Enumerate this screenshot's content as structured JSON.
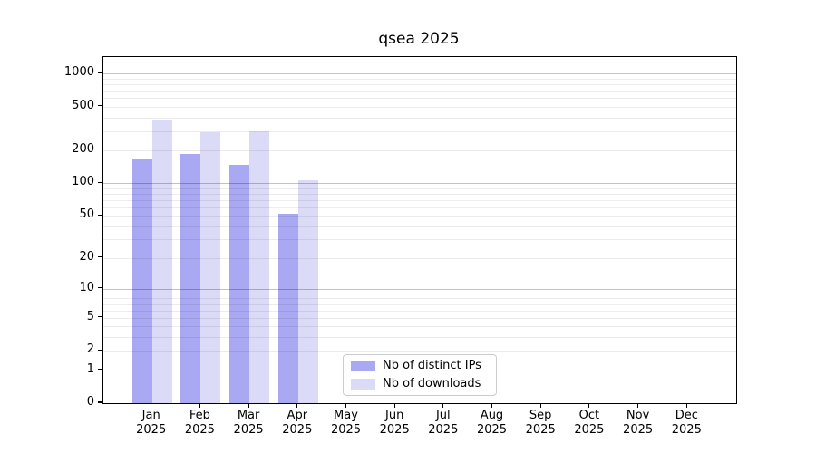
{
  "title": "qsea 2025",
  "chart_data": {
    "type": "bar",
    "title": "qsea 2025",
    "categories": [
      "Jan 2025",
      "Feb 2025",
      "Mar 2025",
      "Apr 2025",
      "May 2025",
      "Jun 2025",
      "Jul 2025",
      "Aug 2025",
      "Sep 2025",
      "Oct 2025",
      "Nov 2025",
      "Dec 2025"
    ],
    "series": [
      {
        "name": "Nb of distinct IPs",
        "color": "#a8a8f3",
        "values": [
          167,
          184,
          148,
          52,
          null,
          null,
          null,
          null,
          null,
          null,
          null,
          null
        ]
      },
      {
        "name": "Nb of downloads",
        "color": "#dbdbf8",
        "values": [
          373,
          293,
          299,
          106,
          null,
          null,
          null,
          null,
          null,
          null,
          null,
          null
        ]
      }
    ],
    "xlabel": "",
    "ylabel": "",
    "yscale": "log1p",
    "yticks": [
      0,
      1,
      2,
      5,
      10,
      20,
      50,
      100,
      200,
      500,
      1000
    ],
    "ylim": [
      0,
      1418
    ],
    "grid": "horizontal-major-minor",
    "legend_position": "inside-bottom-center",
    "background": "#ffffff"
  }
}
